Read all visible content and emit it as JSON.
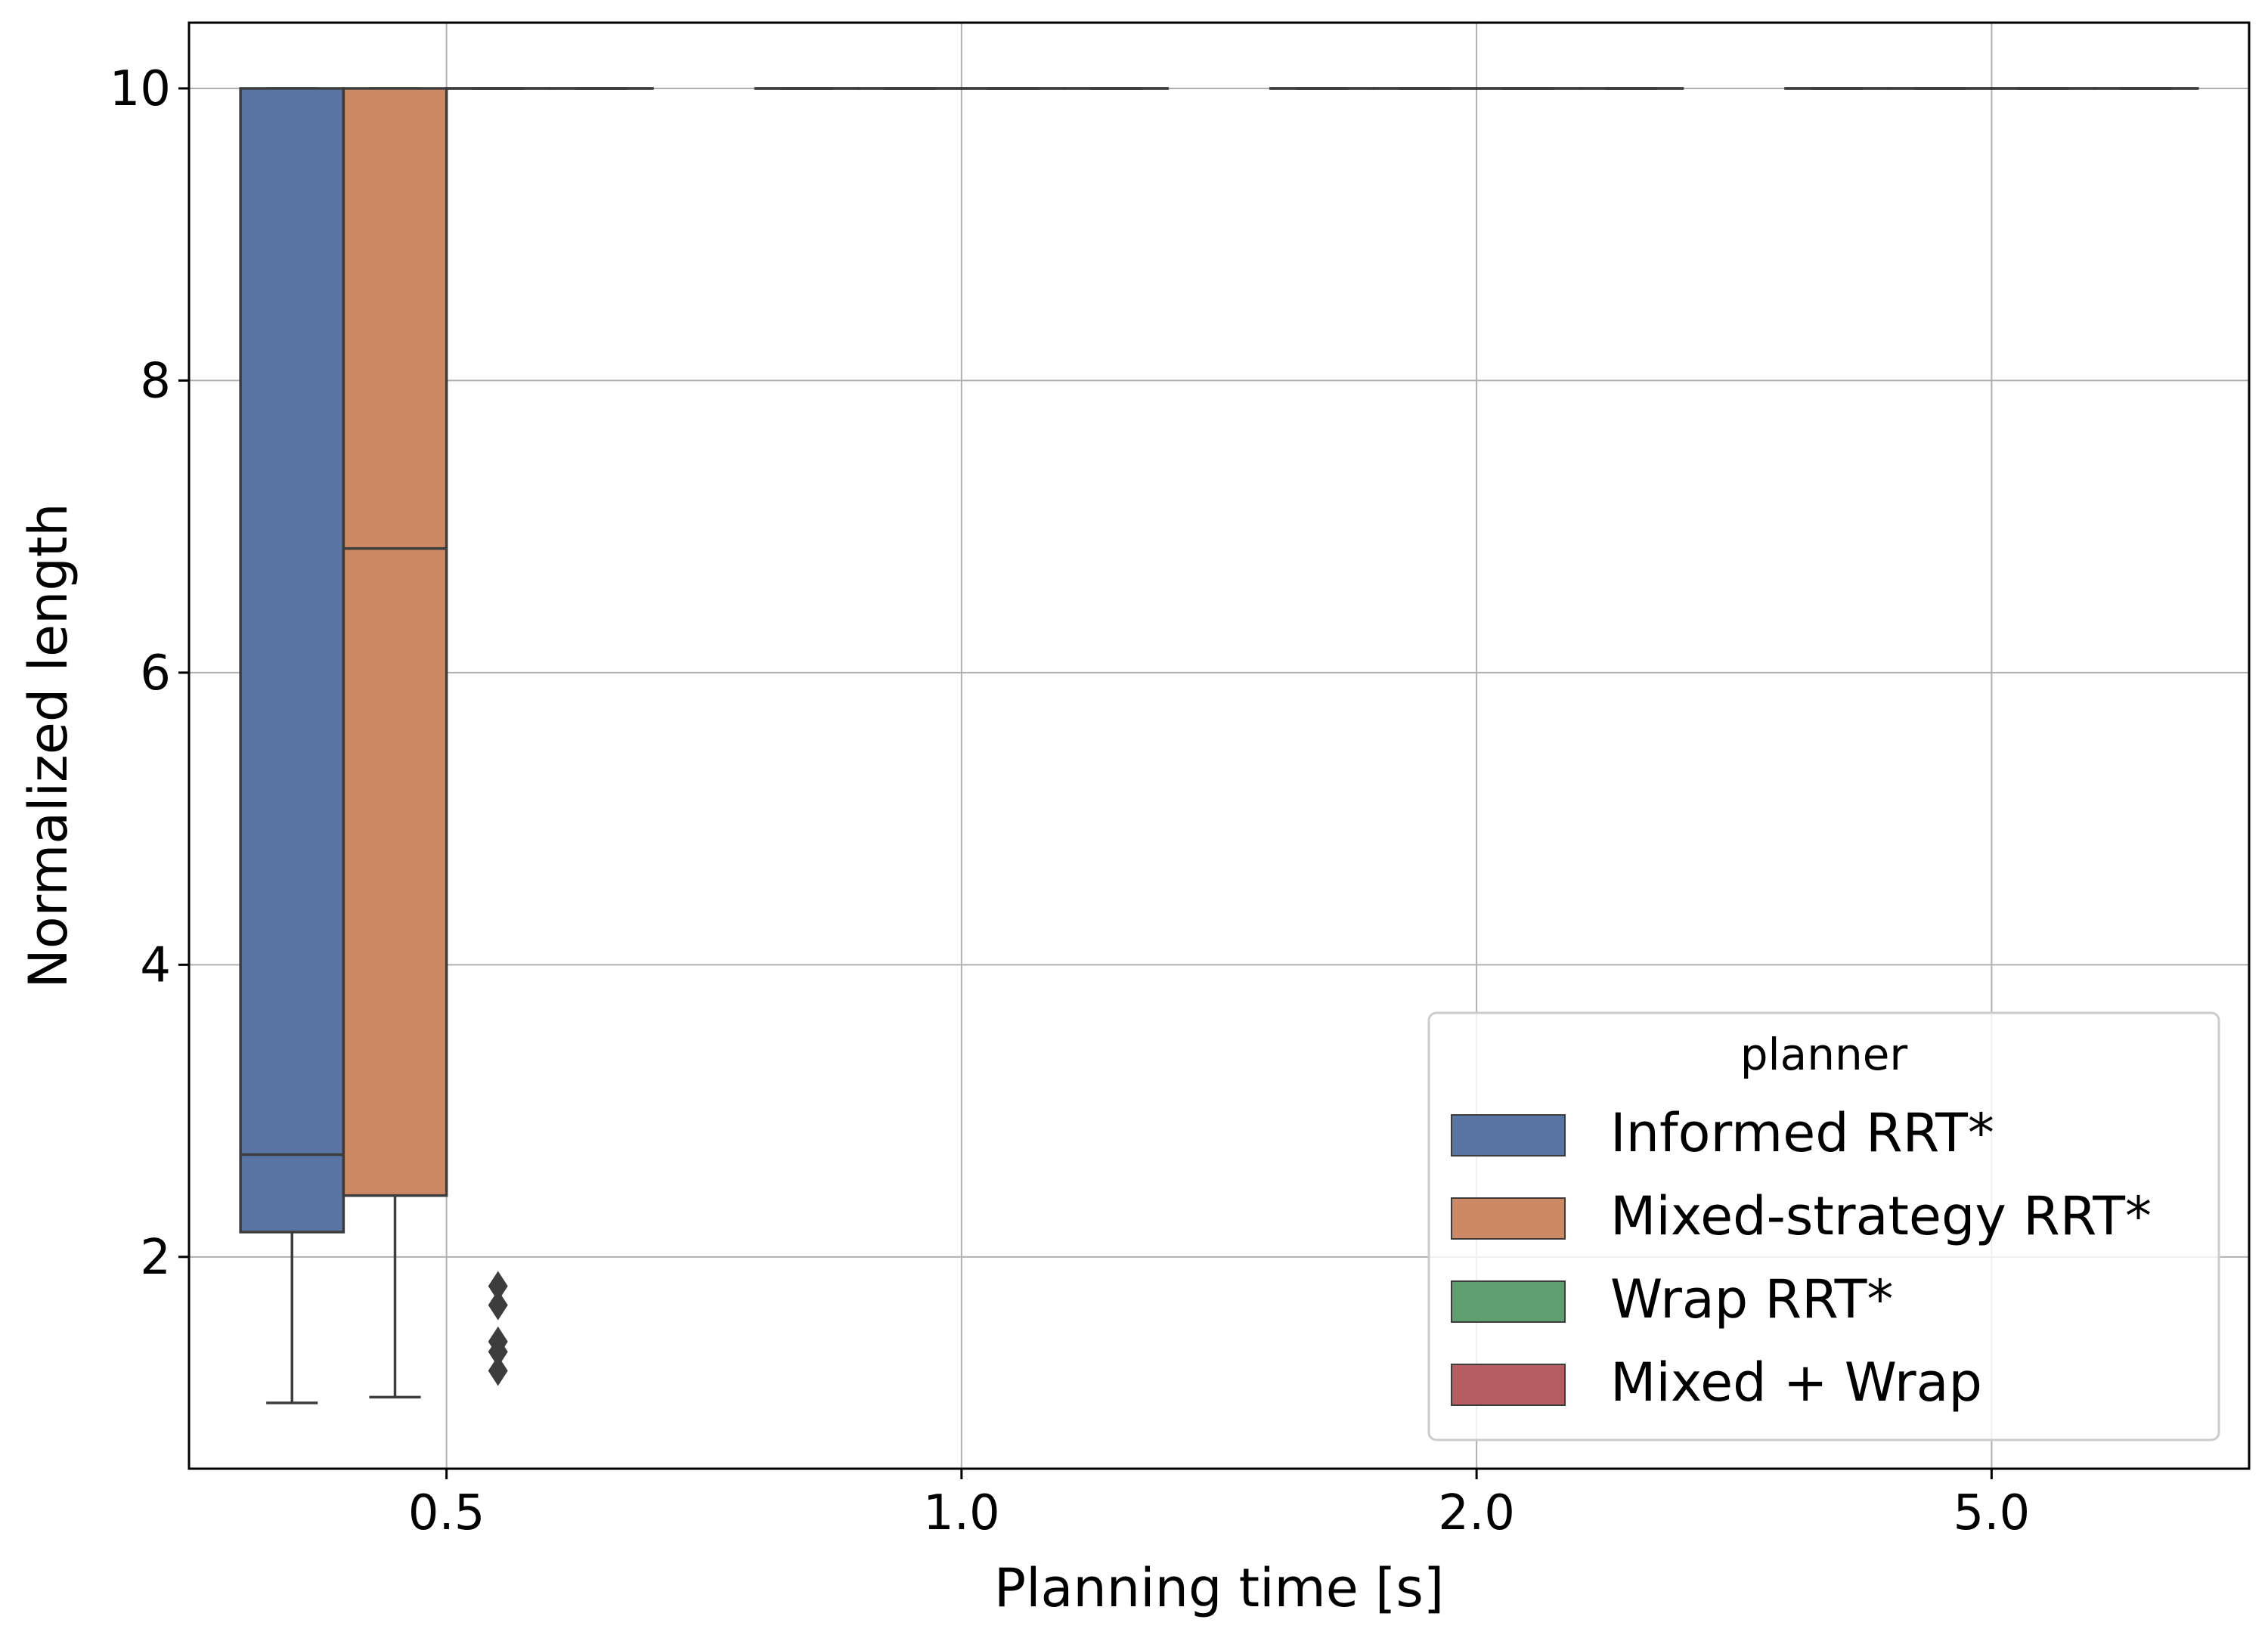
{
  "chart_data": {
    "type": "box",
    "xlabel": "Planning time [s]",
    "ylabel": "Normalized length",
    "categories": [
      "0.5",
      "1.0",
      "2.0",
      "5.0"
    ],
    "yticks": [
      2,
      4,
      6,
      8,
      10
    ],
    "ylim": [
      0.55,
      10.45
    ],
    "grid": true,
    "legend": {
      "title": "planner",
      "placement": "lower-right",
      "entries": [
        "Informed RRT*",
        "Mixed-strategy RRT*",
        "Wrap RRT*",
        "Mixed + Wrap"
      ]
    },
    "series": [
      {
        "name": "Informed RRT*",
        "color": "#5875a4",
        "boxes": [
          {
            "category": "0.5",
            "whisker_low": 1.0,
            "q1": 2.17,
            "median": 2.7,
            "q3": 10.0,
            "whisker_high": 10.0
          },
          {
            "category": "1.0",
            "whisker_low": 10.0,
            "q1": 10.0,
            "median": 10.0,
            "q3": 10.0,
            "whisker_high": 10.0
          },
          {
            "category": "2.0",
            "whisker_low": 10.0,
            "q1": 10.0,
            "median": 10.0,
            "q3": 10.0,
            "whisker_high": 10.0
          },
          {
            "category": "5.0",
            "whisker_low": 10.0,
            "q1": 10.0,
            "median": 10.0,
            "q3": 10.0,
            "whisker_high": 10.0
          }
        ]
      },
      {
        "name": "Mixed-strategy RRT*",
        "color": "#cc8963",
        "boxes": [
          {
            "category": "0.5",
            "whisker_low": 1.04,
            "q1": 2.42,
            "median": 6.85,
            "q3": 10.0,
            "whisker_high": 10.0
          },
          {
            "category": "1.0",
            "whisker_low": 10.0,
            "q1": 10.0,
            "median": 10.0,
            "q3": 10.0,
            "whisker_high": 10.0
          },
          {
            "category": "2.0",
            "whisker_low": 10.0,
            "q1": 10.0,
            "median": 10.0,
            "q3": 10.0,
            "whisker_high": 10.0
          },
          {
            "category": "5.0",
            "whisker_low": 10.0,
            "q1": 10.0,
            "median": 10.0,
            "q3": 10.0,
            "whisker_high": 10.0
          }
        ]
      },
      {
        "name": "Wrap RRT*",
        "color": "#5f9e6e",
        "boxes": [
          {
            "category": "0.5",
            "whisker_low": 10.0,
            "q1": 10.0,
            "median": 10.0,
            "q3": 10.0,
            "whisker_high": 10.0,
            "outliers": [
              1.8,
              1.67,
              1.42,
              1.35,
              1.22
            ]
          },
          {
            "category": "1.0",
            "whisker_low": 10.0,
            "q1": 10.0,
            "median": 10.0,
            "q3": 10.0,
            "whisker_high": 10.0
          },
          {
            "category": "2.0",
            "whisker_low": 10.0,
            "q1": 10.0,
            "median": 10.0,
            "q3": 10.0,
            "whisker_high": 10.0
          },
          {
            "category": "5.0",
            "whisker_low": 10.0,
            "q1": 10.0,
            "median": 10.0,
            "q3": 10.0,
            "whisker_high": 10.0
          }
        ]
      },
      {
        "name": "Mixed + Wrap",
        "color": "#b55d60",
        "boxes": [
          {
            "category": "0.5",
            "whisker_low": 10.0,
            "q1": 10.0,
            "median": 10.0,
            "q3": 10.0,
            "whisker_high": 10.0
          },
          {
            "category": "1.0",
            "whisker_low": 10.0,
            "q1": 10.0,
            "median": 10.0,
            "q3": 10.0,
            "whisker_high": 10.0
          },
          {
            "category": "2.0",
            "whisker_low": 10.0,
            "q1": 10.0,
            "median": 10.0,
            "q3": 10.0,
            "whisker_high": 10.0
          },
          {
            "category": "5.0",
            "whisker_low": 10.0,
            "q1": 10.0,
            "median": 10.0,
            "q3": 10.0,
            "whisker_high": 10.0
          }
        ]
      }
    ]
  }
}
